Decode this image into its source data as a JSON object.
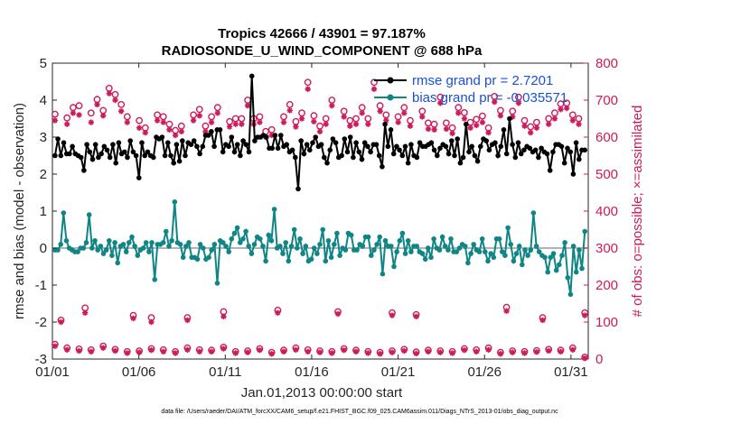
{
  "chart_data": {
    "type": "line",
    "title": "Tropics 42666 / 43901 = 97.187%",
    "subtitle": "RADIOSONDE_U_WIND_COMPONENT @ 688 hPa",
    "xlabel": "Jan.01,2013 00:00:00 start",
    "ylabel": "rmse and bias (model - observation)",
    "ylabel_right": "# of obs: o=possible; ×=assimilated",
    "footnote": "data file: /Users/raeder/DAI/ATM_forcXX/CAM6_setup/f.e21.FHIST_BGC.f09_025.CAM6assim.011/Diags_NTrS_2013-01/obs_diag_output.nc",
    "xlim": [
      1,
      32
    ],
    "ylim": [
      -3,
      5
    ],
    "ylim_right": [
      0,
      800
    ],
    "x_ticks": [
      1,
      6,
      11,
      16,
      21,
      26,
      31
    ],
    "x_tick_labels": [
      "01/01",
      "01/06",
      "01/11",
      "01/16",
      "01/21",
      "01/26",
      "01/31"
    ],
    "y_ticks": [
      -3,
      -2,
      -1,
      0,
      1,
      2,
      3,
      4,
      5
    ],
    "y_tick_labels": [
      "-3",
      "-2",
      "-1",
      "0",
      "1",
      "2",
      "3",
      "4",
      "5"
    ],
    "y_right_ticks": [
      0,
      100,
      200,
      300,
      400,
      500,
      600,
      700,
      800
    ],
    "y_right_tick_labels": [
      "0",
      "100",
      "200",
      "300",
      "400",
      "500",
      "600",
      "700",
      "800"
    ],
    "legend_position": "top-right",
    "colors": {
      "rmse": "#000000",
      "bias": "#0f8585",
      "obs": "#cc1a5a",
      "zero_line": "#b3b3b3"
    },
    "series": [
      {
        "name": "rmse grand pr = 2.7201",
        "axis": "left",
        "values": [
          2.5,
          2.95,
          2.5,
          2.85,
          2.55,
          2.55,
          2.75,
          2.55,
          2.5,
          2.45,
          2.1,
          2.8,
          2.6,
          2.4,
          2.8,
          2.45,
          2.55,
          2.75,
          2.65,
          2.45,
          2.8,
          2.3,
          2.85,
          2.55,
          2.6,
          2.45,
          2.9,
          2.6,
          2.5,
          1.9,
          2.85,
          2.5,
          2.6,
          2.5,
          2.45,
          3.0,
          2.95,
          3.0,
          2.5,
          2.85,
          2.5,
          2.3,
          2.8,
          2.35,
          2.9,
          2.5,
          2.85,
          2.8,
          2.9,
          2.75,
          2.55,
          2.75,
          3.05,
          3.05,
          3.15,
          2.75,
          3.2,
          3.2,
          2.6,
          2.8,
          2.75,
          3.0,
          2.6,
          2.8,
          2.5,
          2.9,
          2.8,
          2.6,
          4.65,
          2.9,
          3.0,
          3.0,
          3.05,
          3.0,
          2.7,
          2.7,
          3.05,
          2.7,
          3.05,
          2.75,
          2.8,
          2.6,
          2.65,
          2.45,
          1.6,
          2.9,
          2.55,
          2.8,
          2.65,
          2.85,
          3.0,
          2.75,
          2.8,
          2.45,
          2.3,
          2.65,
          2.95,
          2.85,
          2.45,
          2.5,
          2.95,
          2.6,
          3.0,
          2.45,
          2.85,
          2.6,
          2.4,
          2.85,
          2.75,
          2.6,
          2.8,
          2.8,
          2.5,
          2.2,
          3.35,
          2.75,
          3.2,
          2.55,
          2.75,
          2.65,
          2.5,
          2.75,
          2.3,
          2.8,
          2.5,
          2.45,
          2.85,
          2.75,
          2.75,
          2.8,
          2.85,
          2.65,
          2.5,
          2.7,
          2.8,
          2.75,
          2.55,
          2.9,
          2.5,
          2.95,
          2.3,
          2.45,
          3.35,
          2.6,
          2.75,
          2.5,
          2.35,
          2.75,
          2.95,
          2.9,
          2.65,
          2.8,
          2.85,
          2.5,
          2.75,
          3.2,
          2.55,
          3.5,
          2.8,
          2.45,
          2.85,
          2.55,
          2.65,
          2.75,
          2.7,
          2.6,
          2.65,
          2.45,
          2.7,
          2.6,
          2.55,
          2.1,
          2.6,
          2.8,
          2.8,
          2.75,
          2.3,
          2.7,
          2.6,
          2.0,
          2.85,
          2.4,
          2.65,
          2.65
        ]
      },
      {
        "name": "bias grand pr = -0.035571",
        "axis": "left",
        "values": [
          -0.05,
          -0.05,
          0.1,
          0.95,
          0.2,
          0.0,
          -0.05,
          -0.1,
          -0.1,
          0.0,
          0.0,
          0.15,
          0.9,
          0.0,
          0.2,
          -0.05,
          0.05,
          -0.15,
          -0.05,
          0.2,
          -0.2,
          0.15,
          -0.4,
          0.05,
          0.1,
          -0.1,
          0.15,
          0.3,
          0.05,
          -0.2,
          -0.05,
          0.0,
          0.15,
          -0.1,
          0.15,
          -0.85,
          0.1,
          0.1,
          0.15,
          0.45,
          0.05,
          0.2,
          1.25,
          0.15,
          0.1,
          -0.25,
          0.05,
          0.15,
          -0.25,
          -0.25,
          -0.3,
          0.1,
          0.0,
          -0.3,
          -0.25,
          -0.05,
          0.1,
          -0.95,
          0.2,
          0.15,
          0.05,
          -0.1,
          0.25,
          0.4,
          0.55,
          0.15,
          0.25,
          0.45,
          0.05,
          -0.15,
          0.1,
          0.3,
          0.25,
          0.05,
          -0.35,
          0.35,
          0.2,
          1.05,
          0.0,
          0.05,
          -0.15,
          0.15,
          -0.35,
          0.05,
          0.5,
          0.0,
          0.25,
          -0.15,
          0.05,
          -0.35,
          -0.3,
          0.0,
          -0.15,
          0.1,
          0.5,
          -0.35,
          0.2,
          -0.25,
          0.1,
          0.4,
          -0.2,
          0.0,
          -0.05,
          0.4,
          0.35,
          -0.05,
          -0.05,
          0.1,
          0.05,
          0.3,
          0.3,
          -0.2,
          -0.05,
          0.1,
          0.3,
          -0.7,
          0.2,
          0.05,
          0.05,
          -0.5,
          -0.1,
          0.2,
          0.4,
          -0.15,
          0.2,
          -0.1,
          0.05,
          0.05,
          -0.1,
          -0.15,
          -0.3,
          0.0,
          -0.25,
          0.25,
          0.0,
          -0.05,
          0.3,
          0.05,
          -0.05,
          0.25,
          -0.1,
          -0.1,
          0.0,
          0.1,
          0.05,
          -0.4,
          -0.15,
          0.1,
          -0.05,
          -0.1,
          0.25,
          -0.1,
          -0.35,
          -0.15,
          -0.25,
          0.25,
          0.25,
          -0.1,
          -0.2,
          0.55,
          0.1,
          -0.35,
          -0.15,
          0.05,
          -0.45,
          -0.05,
          -0.2,
          -0.05,
          0.95,
          0.05,
          -0.1,
          -0.2,
          -0.25,
          -0.65,
          -0.25,
          -0.15,
          -0.6,
          -0.45,
          -0.2,
          0.15,
          -0.8,
          -1.25,
          0.05,
          -0.65,
          -0.05,
          -0.55,
          0.45
        ]
      },
      {
        "name": "obs possible",
        "axis": "right",
        "marker": "o",
        "values": [
          662,
          105,
          652,
          680,
          685,
          138,
          665,
          702,
          672,
          732,
          715,
          688,
          655,
          118,
          645,
          625,
          112,
          660,
          655,
          635,
          618,
          630,
          112,
          660,
          675,
          630,
          655,
          680,
          128,
          642,
          650,
          650,
          700,
          650,
          655,
          615,
          620,
          132,
          655,
          688,
          642,
          665,
          748,
          658,
          630,
          650,
          700,
          128,
          670,
          645,
          650,
          680,
          650,
          748,
          685,
          660,
          125,
          655,
          680,
          645,
          120,
          670,
          638,
          635,
          708,
          638,
          625,
          680,
          666,
          640,
          648,
          657,
          625,
          710,
          672,
          140,
          670,
          708,
          645,
          628,
          640,
          112,
          650,
          665,
          690,
          692,
          660,
          650,
          125
        ]
      },
      {
        "name": "obs assimilated",
        "axis": "right",
        "marker": "x",
        "values": [
          645,
          100,
          635,
          665,
          660,
          125,
          640,
          688,
          658,
          718,
          700,
          670,
          640,
          110,
          625,
          612,
          100,
          645,
          640,
          620,
          605,
          615,
          105,
          645,
          658,
          615,
          640,
          665,
          115,
          628,
          635,
          635,
          685,
          635,
          640,
          600,
          605,
          125,
          640,
          672,
          628,
          650,
          730,
          642,
          615,
          635,
          685,
          122,
          655,
          630,
          635,
          665,
          635,
          730,
          670,
          645,
          118,
          640,
          665,
          630,
          115,
          655,
          622,
          620,
          692,
          622,
          610,
          665,
          650,
          625,
          632,
          640,
          612,
          695,
          658,
          130,
          655,
          692,
          630,
          612,
          625,
          105,
          635,
          650,
          675,
          678,
          645,
          635,
          118
        ]
      },
      {
        "name": "obs possible (low)",
        "axis": "right",
        "marker": "o",
        "values": [
          40,
          30,
          27,
          25,
          35,
          26,
          20,
          22,
          28,
          25,
          20,
          30,
          25,
          24,
          32,
          20,
          22,
          28,
          18,
          24,
          30,
          25,
          22,
          20,
          28,
          24,
          20,
          18,
          22,
          26,
          19,
          24,
          22,
          20,
          28,
          25,
          30,
          18,
          22,
          20,
          23,
          26,
          24,
          30,
          5
        ]
      },
      {
        "name": "obs assimilated (low)",
        "axis": "right",
        "marker": "x",
        "values": [
          35,
          25,
          22,
          20,
          30,
          22,
          16,
          18,
          24,
          20,
          16,
          25,
          20,
          20,
          28,
          16,
          18,
          24,
          14,
          20,
          25,
          20,
          18,
          16,
          24,
          20,
          16,
          14,
          18,
          22,
          15,
          20,
          18,
          16,
          24,
          20,
          25,
          14,
          18,
          16,
          19,
          22,
          20,
          25,
          2
        ]
      }
    ]
  }
}
